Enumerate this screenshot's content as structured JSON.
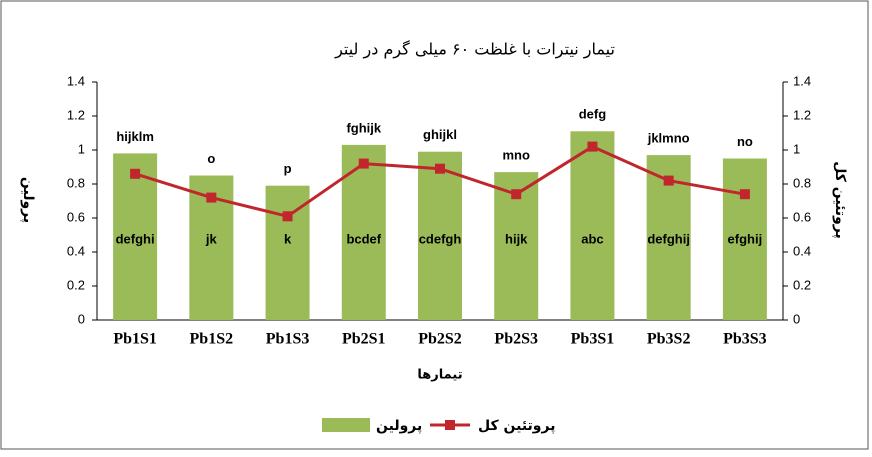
{
  "chart_data": {
    "type": "bar_line",
    "title": "تیمار نیترات با غلظت ۶۰ میلی گرم در لیتر",
    "x_label": "تیمارها",
    "y_label": "پرولین",
    "y2_label": "پروتئین کل",
    "categories": [
      "Pb1S1",
      "Pb1S2",
      "Pb1S3",
      "Pb2S1",
      "Pb2S2",
      "Pb2S3",
      "Pb3S1",
      "Pb3S2",
      "Pb3S3"
    ],
    "series": [
      {
        "name": "پرولین",
        "type": "bar",
        "color": "#9bbb59",
        "values": [
          0.98,
          0.85,
          0.79,
          1.03,
          0.99,
          0.87,
          1.11,
          0.97,
          0.95
        ],
        "labels": [
          "hijklm",
          "o",
          "p",
          "fghijk",
          "ghijkl",
          "mno",
          "defg",
          "jklmno",
          "no"
        ]
      },
      {
        "name": "پروتئین کل",
        "type": "line",
        "axis": "y2",
        "color": "#c0262b",
        "values": [
          0.86,
          0.72,
          0.61,
          0.92,
          0.89,
          0.74,
          1.02,
          0.82,
          0.74
        ],
        "labels": [
          "defghi",
          "jk",
          "k",
          "bcdef",
          "cdefgh",
          "hijk",
          "abc",
          "defghij",
          "efghij"
        ]
      }
    ],
    "ylim": [
      0,
      1.4
    ],
    "yticks": [
      0,
      0.2,
      0.4,
      0.6,
      0.8,
      1,
      1.2,
      1.4
    ],
    "y2lim": [
      0,
      1.4
    ],
    "y2ticks": [
      0,
      0.2,
      0.4,
      0.6,
      0.8,
      1,
      1.2,
      1.4
    ]
  }
}
